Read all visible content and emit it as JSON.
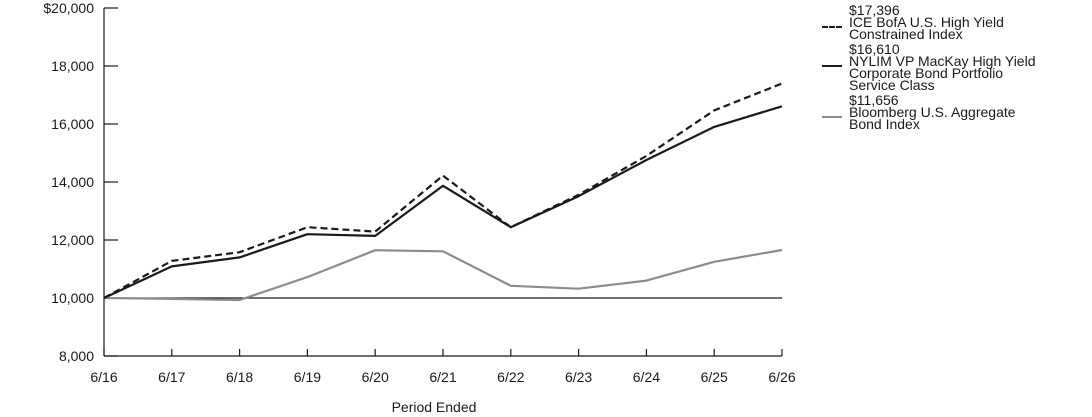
{
  "chart_data": {
    "type": "line",
    "xlabel": "Period Ended",
    "ylabel": "",
    "categories": [
      "6/16",
      "6/17",
      "6/18",
      "6/19",
      "6/20",
      "6/21",
      "6/22",
      "6/23",
      "6/24",
      "6/25",
      "6/26"
    ],
    "ylim": [
      8000,
      20000
    ],
    "yticks": [
      {
        "value": 8000,
        "label": "8,000"
      },
      {
        "value": 10000,
        "label": "10,000"
      },
      {
        "value": 12000,
        "label": "12,000"
      },
      {
        "value": 14000,
        "label": "14,000"
      },
      {
        "value": 16000,
        "label": "16,000"
      },
      {
        "value": 18000,
        "label": "18,000"
      },
      {
        "value": 20000,
        "label": "$20,000"
      }
    ],
    "baseline": 10000,
    "legend_position": "right",
    "series": [
      {
        "name": "ICE BofA U.S. High Yield\nConstrained Index",
        "end_label": "$17,396",
        "style": "dashed",
        "color": "#1a1a1a",
        "values": [
          10000,
          11280,
          11580,
          12440,
          12290,
          14220,
          12440,
          13560,
          14900,
          16470,
          17396
        ]
      },
      {
        "name": "NYLIM VP MacKay High Yield\nCorporate Bond Portfolio\nService Class",
        "end_label": "$16,610",
        "style": "solid",
        "color": "#1a1a1a",
        "values": [
          10000,
          11090,
          11400,
          12200,
          12140,
          13870,
          12440,
          13510,
          14760,
          15900,
          16610
        ]
      },
      {
        "name": "Bloomberg U.S. Aggregate\nBond Index",
        "end_label": "$11,656",
        "style": "solid",
        "color": "#8c8c8c",
        "values": [
          10000,
          9970,
          9930,
          10720,
          11650,
          11610,
          10420,
          10320,
          10600,
          11250,
          11656
        ]
      }
    ]
  }
}
